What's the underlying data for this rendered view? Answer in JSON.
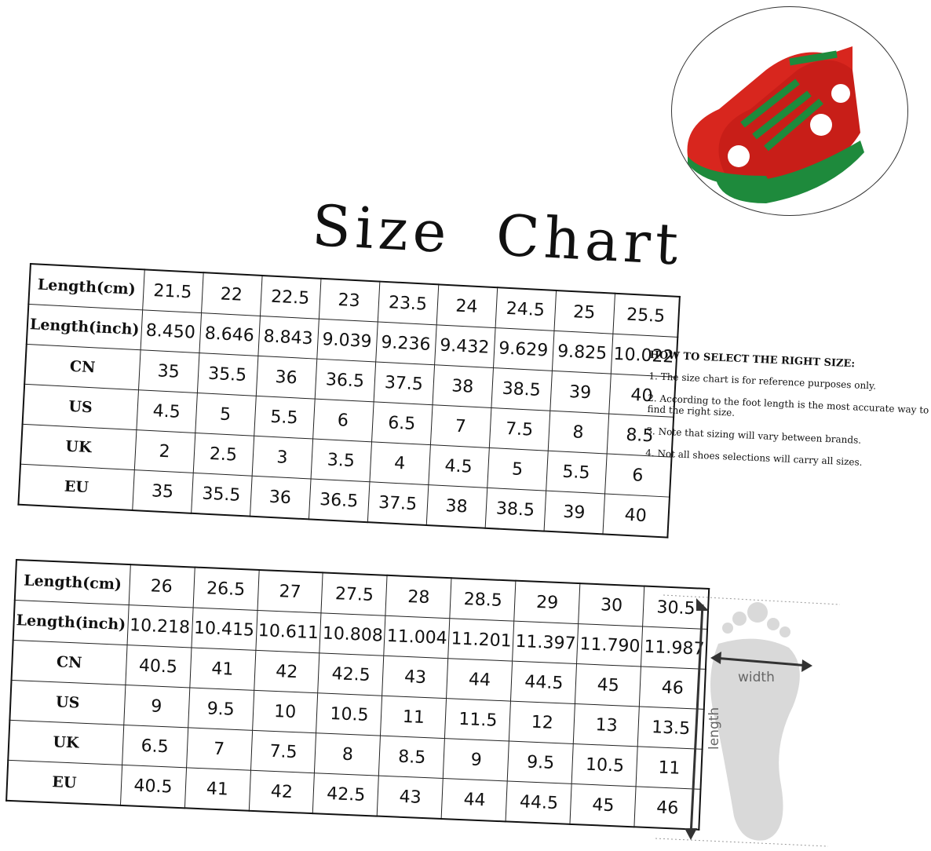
{
  "title": "Size  Chart",
  "table1": {
    "rows": [
      {
        "label": "Length(cm)",
        "values": [
          "21.5",
          "22",
          "22.5",
          "23",
          "23.5",
          "24",
          "24.5",
          "25",
          "25.5"
        ]
      },
      {
        "label": "Length(inch)",
        "values": [
          "8.450",
          "8.646",
          "8.843",
          "9.039",
          "9.236",
          "9.432",
          "9.629",
          "9.825",
          "10.022"
        ]
      },
      {
        "label": "CN",
        "values": [
          "35",
          "35.5",
          "36",
          "36.5",
          "37.5",
          "38",
          "38.5",
          "39",
          "40"
        ]
      },
      {
        "label": "US",
        "values": [
          "4.5",
          "5",
          "5.5",
          "6",
          "6.5",
          "7",
          "7.5",
          "8",
          "8.5"
        ]
      },
      {
        "label": "UK",
        "values": [
          "2",
          "2.5",
          "3",
          "3.5",
          "4",
          "4.5",
          "5",
          "5.5",
          "6"
        ]
      },
      {
        "label": "EU",
        "values": [
          "35",
          "35.5",
          "36",
          "36.5",
          "37.5",
          "38",
          "38.5",
          "39",
          "40"
        ]
      }
    ]
  },
  "table2": {
    "rows": [
      {
        "label": "Length(cm)",
        "values": [
          "26",
          "26.5",
          "27",
          "27.5",
          "28",
          "28.5",
          "29",
          "30",
          "30.5"
        ]
      },
      {
        "label": "Length(inch)",
        "values": [
          "10.218",
          "10.415",
          "10.611",
          "10.808",
          "11.004",
          "11.201",
          "11.397",
          "11.790",
          "11.987"
        ]
      },
      {
        "label": "CN",
        "values": [
          "40.5",
          "41",
          "42",
          "42.5",
          "43",
          "44",
          "44.5",
          "45",
          "46"
        ]
      },
      {
        "label": "US",
        "values": [
          "9",
          "9.5",
          "10",
          "10.5",
          "11",
          "11.5",
          "12",
          "13",
          "13.5"
        ]
      },
      {
        "label": "UK",
        "values": [
          "6.5",
          "7",
          "7.5",
          "8",
          "8.5",
          "9",
          "9.5",
          "10.5",
          "11"
        ]
      },
      {
        "label": "EU",
        "values": [
          "40.5",
          "41",
          "42",
          "42.5",
          "43",
          "44",
          "44.5",
          "45",
          "46"
        ]
      }
    ]
  },
  "howto": {
    "heading": "HOW TO SELECT THE RIGHT SIZE:",
    "items": [
      "1. The size chart is for reference purposes only.",
      "2. According to the foot length is the most accurate way to find the right size.",
      "3. Note that sizing will vary between brands.",
      "4.  Not all shoes selections will carry all sizes."
    ]
  },
  "foot": {
    "width_label": "width",
    "length_label": "length"
  },
  "colors": {
    "shoe_red": "#d8261e",
    "shoe_green": "#1e8a3c",
    "foot_grey": "#d9d9d9"
  }
}
